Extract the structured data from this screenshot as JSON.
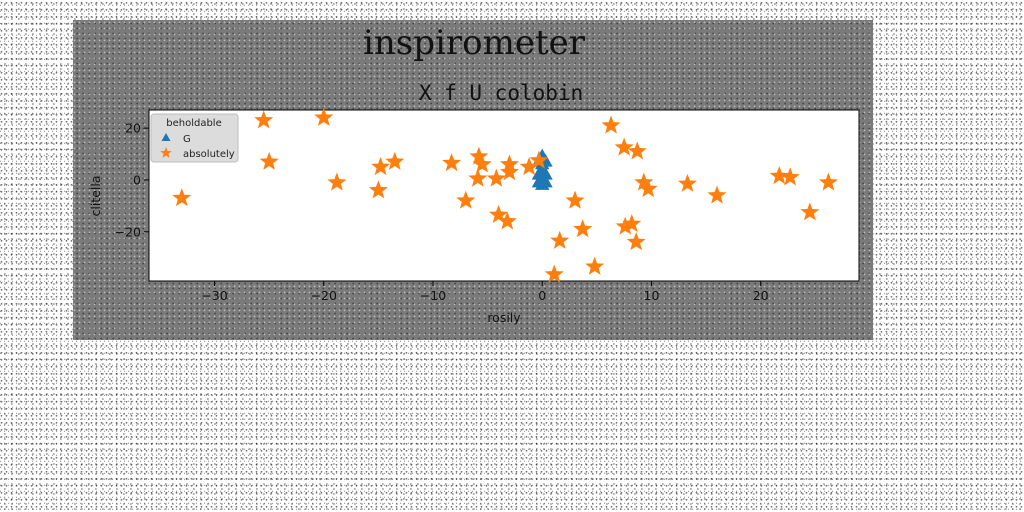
{
  "chart_data": {
    "type": "scatter",
    "suptitle": "inspirometer",
    "title": "X f U colobin",
    "xlabel": "rosily",
    "ylabel": "clitella",
    "xlim": [
      -36,
      29
    ],
    "ylim": [
      -39,
      27
    ],
    "xticks": [
      -30,
      -20,
      -10,
      0,
      10,
      20
    ],
    "yticks": [
      -20,
      0,
      20
    ],
    "grid": false,
    "legend": {
      "title": "beholdable",
      "placement": "top-left"
    },
    "series": [
      {
        "name": "G",
        "marker": "triangle",
        "color": "#1f77b4",
        "points": [
          [
            0,
            9
          ],
          [
            0,
            6
          ],
          [
            0,
            3
          ],
          [
            0,
            0
          ],
          [
            0,
            -2
          ],
          [
            -0.3,
            7
          ],
          [
            0.3,
            7
          ],
          [
            -0.3,
            2
          ],
          [
            0.3,
            2
          ],
          [
            -0.3,
            -1
          ],
          [
            0.3,
            -1
          ]
        ]
      },
      {
        "name": "absolutely",
        "marker": "star",
        "color": "#ff7f0e",
        "points": [
          [
            -33,
            -7
          ],
          [
            -25.5,
            23
          ],
          [
            -25,
            7
          ],
          [
            -20,
            24
          ],
          [
            -18.8,
            -1
          ],
          [
            -15,
            -4
          ],
          [
            -14.8,
            5
          ],
          [
            -13.5,
            7
          ],
          [
            -8.3,
            6.5
          ],
          [
            -7,
            -8
          ],
          [
            -5.8,
            9
          ],
          [
            -5.9,
            0.5
          ],
          [
            -5.5,
            6
          ],
          [
            -4.2,
            0.5
          ],
          [
            -4,
            -13.5
          ],
          [
            -3.2,
            -16
          ],
          [
            -3,
            6
          ],
          [
            -3,
            3
          ],
          [
            -1.2,
            5
          ],
          [
            -0.3,
            7.5
          ],
          [
            1.1,
            -36.5
          ],
          [
            1.6,
            -23.5
          ],
          [
            3,
            -8
          ],
          [
            3.7,
            -19
          ],
          [
            4.8,
            -33.5
          ],
          [
            6.3,
            21
          ],
          [
            7.5,
            12.5
          ],
          [
            7.6,
            -18
          ],
          [
            8.2,
            -17
          ],
          [
            8.6,
            -24
          ],
          [
            8.7,
            11
          ],
          [
            9.3,
            -1
          ],
          [
            9.7,
            -3.5
          ],
          [
            13.3,
            -1.5
          ],
          [
            16,
            -6
          ],
          [
            21.7,
            1.5
          ],
          [
            22.7,
            1
          ],
          [
            24.5,
            -12.5
          ],
          [
            26.2,
            -1
          ]
        ]
      }
    ]
  }
}
